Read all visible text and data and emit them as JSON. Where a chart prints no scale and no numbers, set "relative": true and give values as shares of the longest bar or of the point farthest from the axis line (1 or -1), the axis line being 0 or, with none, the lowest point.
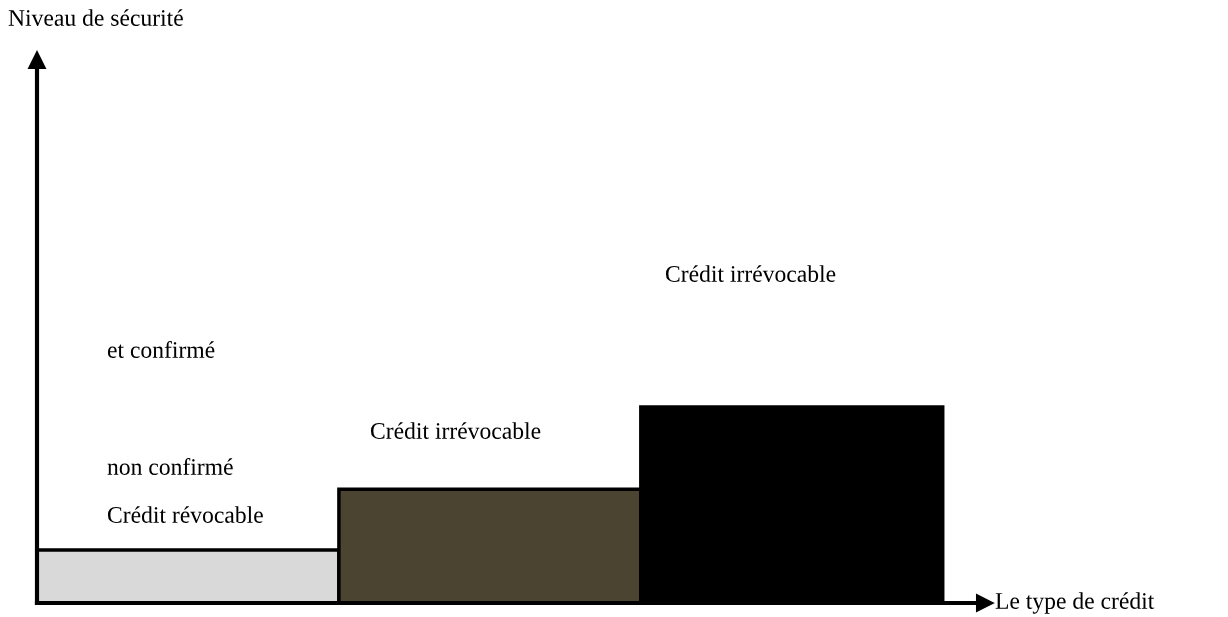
{
  "chart_data": {
    "type": "bar",
    "relative": true,
    "xlabel": "Le type de crédit",
    "categories": [
      null,
      null,
      null
    ],
    "values": [
      0.27,
      0.58,
      1
    ],
    "colors": [
      "#d9d9d9",
      "#4a4430",
      "#000000"
    ],
    "annotations": [
      "Niveau de sécurité",
      "et confirmé",
      "non confirmé",
      "Crédit révocable",
      "Crédit irrévocable",
      "Crédit irrévocable"
    ]
  }
}
